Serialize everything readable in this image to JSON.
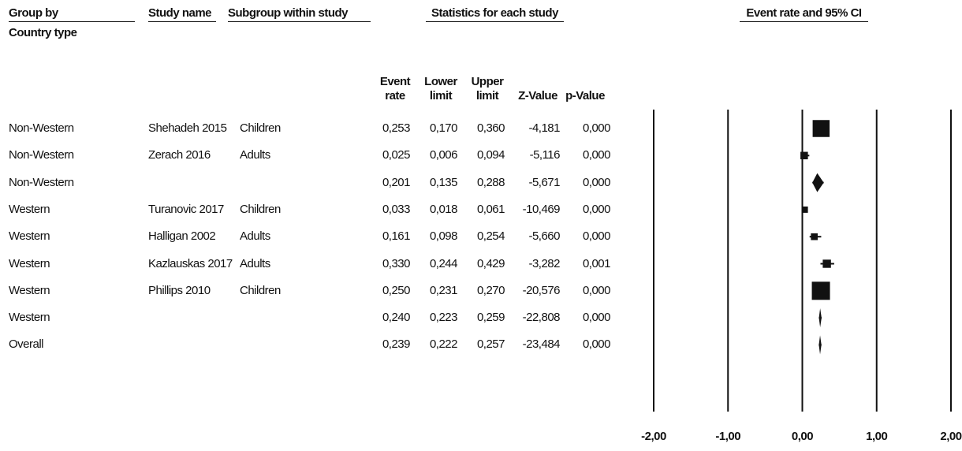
{
  "headers": {
    "group_by": "Group by",
    "study_name": "Study name",
    "subgroup_within_study": "Subgroup within study",
    "statistics_for_each_study": "Statistics for each study",
    "event_rate_and_ci": "Event rate and 95% CI",
    "country_type": "Country type"
  },
  "columns": {
    "event_rate": [
      "Event",
      "rate"
    ],
    "lower_limit": [
      "Lower",
      "limit"
    ],
    "upper_limit": [
      "Upper",
      "limit"
    ],
    "z_value": "Z-Value",
    "p_value": "p-Value"
  },
  "rows": [
    {
      "group": "Non-Western",
      "study": "Shehadeh 2015",
      "subgroup": "Children",
      "event_rate": "0,253",
      "lower": "0,170",
      "upper": "0,360",
      "z": "-4,181",
      "p": "0,000"
    },
    {
      "group": "Non-Western",
      "study": "Zerach 2016",
      "subgroup": "Adults",
      "event_rate": "0,025",
      "lower": "0,006",
      "upper": "0,094",
      "z": "-5,116",
      "p": "0,000"
    },
    {
      "group": "Non-Western",
      "study": "",
      "subgroup": "",
      "event_rate": "0,201",
      "lower": "0,135",
      "upper": "0,288",
      "z": "-5,671",
      "p": "0,000"
    },
    {
      "group": "Western",
      "study": "Turanovic 2017",
      "subgroup": "Children",
      "event_rate": "0,033",
      "lower": "0,018",
      "upper": "0,061",
      "z": "-10,469",
      "p": "0,000"
    },
    {
      "group": "Western",
      "study": "Halligan 2002",
      "subgroup": "Adults",
      "event_rate": "0,161",
      "lower": "0,098",
      "upper": "0,254",
      "z": "-5,660",
      "p": "0,000"
    },
    {
      "group": "Western",
      "study": "Kazlauskas 2017",
      "subgroup": "Adults",
      "event_rate": "0,330",
      "lower": "0,244",
      "upper": "0,429",
      "z": "-3,282",
      "p": "0,001"
    },
    {
      "group": "Western",
      "study": "Phillips 2010",
      "subgroup": "Children",
      "event_rate": "0,250",
      "lower": "0,231",
      "upper": "0,270",
      "z": "-20,576",
      "p": "0,000"
    },
    {
      "group": "Western",
      "study": "",
      "subgroup": "",
      "event_rate": "0,240",
      "lower": "0,223",
      "upper": "0,259",
      "z": "-22,808",
      "p": "0,000"
    },
    {
      "group": "Overall",
      "study": "",
      "subgroup": "",
      "event_rate": "0,239",
      "lower": "0,222",
      "upper": "0,257",
      "z": "-23,484",
      "p": "0,000"
    }
  ],
  "chart_data": {
    "type": "forest",
    "title": "Event rate and 95% CI",
    "xlim": [
      -2,
      2
    ],
    "x_ticks": [
      -2,
      -1,
      0,
      1,
      2
    ],
    "x_tick_labels": [
      "-2,00",
      "-1,00",
      "0,00",
      "1,00",
      "2,00"
    ],
    "grid": true,
    "points": [
      {
        "estimate": 0.253,
        "lower": 0.17,
        "upper": 0.36,
        "marker": "square",
        "weight": 0.55
      },
      {
        "estimate": 0.025,
        "lower": 0.006,
        "upper": 0.094,
        "marker": "square",
        "weight": 0.15
      },
      {
        "estimate": 0.201,
        "lower": 0.135,
        "upper": 0.288,
        "marker": "diamond"
      },
      {
        "estimate": 0.033,
        "lower": 0.018,
        "upper": 0.061,
        "marker": "square",
        "weight": 0.1
      },
      {
        "estimate": 0.161,
        "lower": 0.098,
        "upper": 0.254,
        "marker": "square",
        "weight": 0.12
      },
      {
        "estimate": 0.33,
        "lower": 0.244,
        "upper": 0.429,
        "marker": "square",
        "weight": 0.18
      },
      {
        "estimate": 0.25,
        "lower": 0.231,
        "upper": 0.27,
        "marker": "square",
        "weight": 0.6
      },
      {
        "estimate": 0.24,
        "lower": 0.223,
        "upper": 0.259,
        "marker": "diamond"
      },
      {
        "estimate": 0.239,
        "lower": 0.222,
        "upper": 0.257,
        "marker": "diamond"
      }
    ]
  }
}
